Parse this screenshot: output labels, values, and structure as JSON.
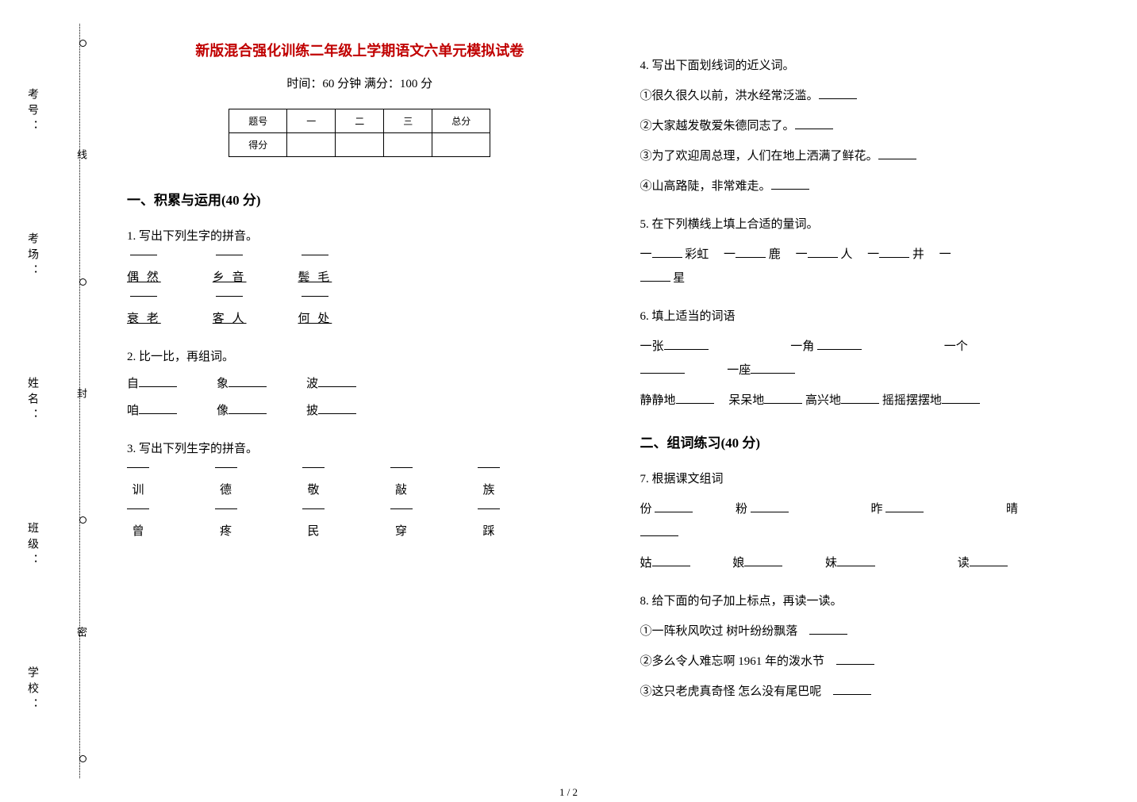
{
  "colors": {
    "title": "#c00000",
    "text": "#000000",
    "bg": "#ffffff"
  },
  "fonts": {
    "body_family": "SimSun",
    "title_size_pt": 18,
    "body_size_pt": 15
  },
  "vertical_labels": [
    "考号：",
    "考场：",
    "姓名：",
    "班级：",
    "学校："
  ],
  "cut_line_chars": [
    "线",
    "封",
    "密"
  ],
  "title": "新版混合强化训练二年级上学期语文六单元模拟试卷",
  "subtitle": "时间：60 分钟   满分：100 分",
  "score_table": {
    "headers": [
      "题号",
      "一",
      "二",
      "三",
      "总分"
    ],
    "row2_label": "得分"
  },
  "section1": {
    "title": "一、积累与运用(40 分)",
    "q1": {
      "prompt": "1. 写出下列生字的拼音。",
      "row1": [
        "偶 然",
        "乡 音",
        "鬓 毛"
      ],
      "row2": [
        "衰 老",
        "客 人",
        "何 处"
      ]
    },
    "q2": {
      "prompt": "2. 比一比，再组词。",
      "pairs": [
        [
          "自",
          "象",
          "波"
        ],
        [
          "咱",
          "像",
          "披"
        ]
      ]
    },
    "q3": {
      "prompt": "3. 写出下列生字的拼音。",
      "row1": [
        "训",
        "德",
        "敬",
        "敲",
        "族"
      ],
      "row2": [
        "曾",
        "疼",
        "民",
        "穿",
        "踩"
      ]
    }
  },
  "q4": {
    "prompt": "4. 写出下面划线词的近义词。",
    "lines": [
      "①很久很久以前，洪水经常泛滥。",
      "②大家越发敬爱朱德同志了。",
      "③为了欢迎周总理，人们在地上洒满了鲜花。",
      "④山高路陡，非常难走。"
    ]
  },
  "q5": {
    "prompt": "5. 在下列横线上填上合适的量词。",
    "items": [
      "彩虹",
      "鹿",
      "人",
      "井",
      "星"
    ]
  },
  "q6": {
    "prompt": "6. 填上适当的词语",
    "row1": [
      "一张",
      "一角",
      "一个"
    ],
    "row1b": "一座",
    "row2": [
      "静静地",
      "呆呆地",
      "高兴地",
      "摇摇摆摆地"
    ]
  },
  "section2": {
    "title": "二、组词练习(40 分)",
    "q7": {
      "prompt": "7. 根据课文组词",
      "row1": [
        "份",
        "粉",
        "昨",
        "晴"
      ],
      "row2": [
        "姑",
        "娘",
        "妹",
        "读"
      ]
    },
    "q8": {
      "prompt": "8. 给下面的句子加上标点，再读一读。",
      "lines": [
        "①一阵秋风吹过   树叶纷纷飘落",
        "②多么令人难忘啊        1961 年的泼水节",
        "③这只老虎真奇怪      怎么没有尾巴呢"
      ]
    }
  },
  "footer": "1 / 2"
}
